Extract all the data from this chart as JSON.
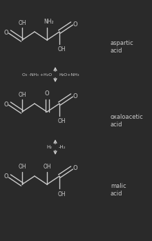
{
  "bg_color": "#2a2a2a",
  "line_color": "#cccccc",
  "text_color": "#cccccc",
  "figsize": [
    2.2,
    3.49
  ],
  "dpi": 100,
  "aspartic_label": "aspartic\nacid",
  "oxaloacetic_label": "oxaloacetic\nacid",
  "malic_label": "malic\nacid",
  "arrow1_reagent_left": "O₂ -NH₃ +H₂O",
  "arrow1_reagent_right": "H₂O+NH₃",
  "arrow2_reagent_left": "H₂",
  "arrow2_reagent_right": "-H₂"
}
